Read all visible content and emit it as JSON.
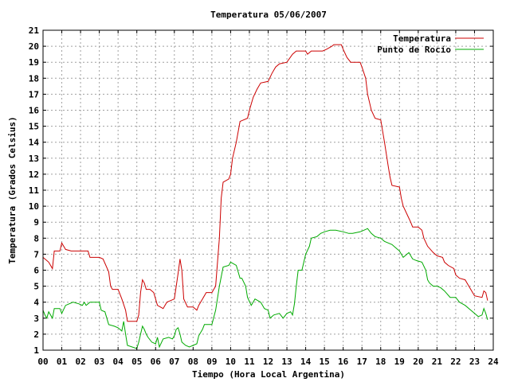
{
  "chart_data": {
    "type": "line",
    "title": "Temperatura 05/06/2007",
    "xlabel": "Tiempo (Hora Local Argentina)",
    "ylabel": "Temperatura (Grados Celsius)",
    "xlim": [
      0,
      24
    ],
    "ylim": [
      1,
      21
    ],
    "x_ticks": [
      0,
      1,
      2,
      3,
      4,
      5,
      6,
      7,
      8,
      9,
      10,
      11,
      12,
      13,
      14,
      15,
      16,
      17,
      18,
      19,
      20,
      21,
      22,
      23,
      24
    ],
    "x_tick_labels": [
      "00",
      "01",
      "02",
      "03",
      "04",
      "05",
      "06",
      "07",
      "08",
      "09",
      "10",
      "11",
      "12",
      "13",
      "14",
      "15",
      "16",
      "17",
      "18",
      "19",
      "20",
      "21",
      "22",
      "23",
      "24"
    ],
    "y_ticks": [
      1,
      2,
      3,
      4,
      5,
      6,
      7,
      8,
      9,
      10,
      11,
      12,
      13,
      14,
      15,
      16,
      17,
      18,
      19,
      20,
      21
    ],
    "grid": true,
    "legend_position": "top-right",
    "series": [
      {
        "name": "Temperatura",
        "color": "#cc0000",
        "points": [
          [
            0,
            6.8
          ],
          [
            0.3,
            6.5
          ],
          [
            0.5,
            6.1
          ],
          [
            0.6,
            7.2
          ],
          [
            0.9,
            7.2
          ],
          [
            1.0,
            7.7
          ],
          [
            1.2,
            7.3
          ],
          [
            1.5,
            7.2
          ],
          [
            2.0,
            7.2
          ],
          [
            2.4,
            7.2
          ],
          [
            2.5,
            6.8
          ],
          [
            3.0,
            6.8
          ],
          [
            3.2,
            6.7
          ],
          [
            3.5,
            5.9
          ],
          [
            3.6,
            5.0
          ],
          [
            3.7,
            4.8
          ],
          [
            4.0,
            4.8
          ],
          [
            4.2,
            4.2
          ],
          [
            4.4,
            3.5
          ],
          [
            4.5,
            2.8
          ],
          [
            5.0,
            2.8
          ],
          [
            5.1,
            3.2
          ],
          [
            5.2,
            4.6
          ],
          [
            5.3,
            5.4
          ],
          [
            5.4,
            5.2
          ],
          [
            5.5,
            4.8
          ],
          [
            5.7,
            4.8
          ],
          [
            5.9,
            4.6
          ],
          [
            6.1,
            3.8
          ],
          [
            6.4,
            3.6
          ],
          [
            6.6,
            4.0
          ],
          [
            6.8,
            4.1
          ],
          [
            7.0,
            4.2
          ],
          [
            7.2,
            5.8
          ],
          [
            7.3,
            6.7
          ],
          [
            7.4,
            6.0
          ],
          [
            7.5,
            4.2
          ],
          [
            7.7,
            3.7
          ],
          [
            8.0,
            3.7
          ],
          [
            8.2,
            3.5
          ],
          [
            8.3,
            3.8
          ],
          [
            8.5,
            4.2
          ],
          [
            8.7,
            4.6
          ],
          [
            9.0,
            4.6
          ],
          [
            9.2,
            5.0
          ],
          [
            9.4,
            8.0
          ],
          [
            9.5,
            10.5
          ],
          [
            9.6,
            11.5
          ],
          [
            9.9,
            11.7
          ],
          [
            10.0,
            12.0
          ],
          [
            10.1,
            13.0
          ],
          [
            10.3,
            14.0
          ],
          [
            10.5,
            15.3
          ],
          [
            10.9,
            15.5
          ],
          [
            11.0,
            16.0
          ],
          [
            11.2,
            16.8
          ],
          [
            11.4,
            17.3
          ],
          [
            11.6,
            17.7
          ],
          [
            12.0,
            17.8
          ],
          [
            12.2,
            18.3
          ],
          [
            12.4,
            18.7
          ],
          [
            12.6,
            18.9
          ],
          [
            13.0,
            19.0
          ],
          [
            13.3,
            19.5
          ],
          [
            13.5,
            19.7
          ],
          [
            14.0,
            19.7
          ],
          [
            14.1,
            19.5
          ],
          [
            14.3,
            19.7
          ],
          [
            14.9,
            19.7
          ],
          [
            15.1,
            19.8
          ],
          [
            15.4,
            20.0
          ],
          [
            15.5,
            20.1
          ],
          [
            15.9,
            20.1
          ],
          [
            16.0,
            19.8
          ],
          [
            16.2,
            19.3
          ],
          [
            16.4,
            19.0
          ],
          [
            16.9,
            19.0
          ],
          [
            17.0,
            18.7
          ],
          [
            17.2,
            18.0
          ],
          [
            17.3,
            17.0
          ],
          [
            17.5,
            16.0
          ],
          [
            17.7,
            15.5
          ],
          [
            18.0,
            15.4
          ],
          [
            18.2,
            14.0
          ],
          [
            18.4,
            12.5
          ],
          [
            18.5,
            11.8
          ],
          [
            18.6,
            11.3
          ],
          [
            19.0,
            11.2
          ],
          [
            19.1,
            10.5
          ],
          [
            19.2,
            10.0
          ],
          [
            19.4,
            9.5
          ],
          [
            19.6,
            9.0
          ],
          [
            19.7,
            8.7
          ],
          [
            20.0,
            8.7
          ],
          [
            20.2,
            8.5
          ],
          [
            20.3,
            8.0
          ],
          [
            20.5,
            7.5
          ],
          [
            20.8,
            7.1
          ],
          [
            21.0,
            6.9
          ],
          [
            21.3,
            6.8
          ],
          [
            21.4,
            6.5
          ],
          [
            21.6,
            6.3
          ],
          [
            21.9,
            6.1
          ],
          [
            22.0,
            5.7
          ],
          [
            22.2,
            5.5
          ],
          [
            22.5,
            5.4
          ],
          [
            22.7,
            5.0
          ],
          [
            22.9,
            4.6
          ],
          [
            23.0,
            4.4
          ],
          [
            23.4,
            4.3
          ],
          [
            23.5,
            4.7
          ],
          [
            23.6,
            4.6
          ],
          [
            23.7,
            4.1
          ]
        ]
      },
      {
        "name": "Punto de Rocío",
        "color": "#00aa00",
        "points": [
          [
            0,
            3.5
          ],
          [
            0.1,
            3.2
          ],
          [
            0.2,
            3.0
          ],
          [
            0.3,
            3.4
          ],
          [
            0.5,
            3.0
          ],
          [
            0.6,
            3.6
          ],
          [
            0.9,
            3.6
          ],
          [
            1.0,
            3.3
          ],
          [
            1.2,
            3.8
          ],
          [
            1.6,
            4.0
          ],
          [
            1.9,
            3.9
          ],
          [
            2.1,
            3.8
          ],
          [
            2.2,
            4.0
          ],
          [
            2.3,
            3.8
          ],
          [
            2.5,
            4.0
          ],
          [
            3.0,
            4.0
          ],
          [
            3.1,
            3.5
          ],
          [
            3.3,
            3.4
          ],
          [
            3.5,
            2.6
          ],
          [
            3.8,
            2.5
          ],
          [
            4.0,
            2.4
          ],
          [
            4.2,
            2.2
          ],
          [
            4.3,
            2.8
          ],
          [
            4.4,
            2.0
          ],
          [
            4.5,
            1.3
          ],
          [
            5.0,
            1.1
          ],
          [
            5.1,
            1.5
          ],
          [
            5.2,
            2.0
          ],
          [
            5.3,
            2.5
          ],
          [
            5.4,
            2.3
          ],
          [
            5.5,
            2.0
          ],
          [
            5.6,
            1.8
          ],
          [
            5.8,
            1.5
          ],
          [
            6.0,
            1.4
          ],
          [
            6.1,
            1.8
          ],
          [
            6.2,
            1.2
          ],
          [
            6.4,
            1.7
          ],
          [
            6.7,
            1.8
          ],
          [
            6.9,
            1.7
          ],
          [
            7.0,
            1.9
          ],
          [
            7.1,
            2.3
          ],
          [
            7.2,
            2.4
          ],
          [
            7.3,
            2.0
          ],
          [
            7.4,
            1.5
          ],
          [
            7.6,
            1.3
          ],
          [
            7.8,
            1.2
          ],
          [
            8.0,
            1.3
          ],
          [
            8.2,
            1.4
          ],
          [
            8.3,
            1.9
          ],
          [
            8.5,
            2.3
          ],
          [
            8.6,
            2.6
          ],
          [
            9.0,
            2.6
          ],
          [
            9.2,
            3.5
          ],
          [
            9.4,
            5.0
          ],
          [
            9.6,
            6.2
          ],
          [
            9.9,
            6.3
          ],
          [
            10.0,
            6.5
          ],
          [
            10.3,
            6.3
          ],
          [
            10.5,
            5.5
          ],
          [
            10.6,
            5.5
          ],
          [
            10.8,
            5.0
          ],
          [
            10.9,
            4.3
          ],
          [
            11.1,
            3.8
          ],
          [
            11.3,
            4.2
          ],
          [
            11.6,
            4.0
          ],
          [
            11.8,
            3.6
          ],
          [
            12.0,
            3.5
          ],
          [
            12.1,
            3.0
          ],
          [
            12.3,
            3.2
          ],
          [
            12.6,
            3.3
          ],
          [
            12.8,
            3.0
          ],
          [
            13.0,
            3.3
          ],
          [
            13.2,
            3.4
          ],
          [
            13.3,
            3.2
          ],
          [
            13.4,
            3.9
          ],
          [
            13.5,
            5.0
          ],
          [
            13.6,
            6.0
          ],
          [
            13.8,
            6.0
          ],
          [
            14.0,
            7.0
          ],
          [
            14.2,
            7.5
          ],
          [
            14.3,
            8.0
          ],
          [
            14.6,
            8.1
          ],
          [
            14.8,
            8.3
          ],
          [
            15.0,
            8.4
          ],
          [
            15.3,
            8.5
          ],
          [
            15.6,
            8.5
          ],
          [
            16.0,
            8.4
          ],
          [
            16.3,
            8.3
          ],
          [
            16.5,
            8.3
          ],
          [
            16.9,
            8.4
          ],
          [
            17.1,
            8.5
          ],
          [
            17.3,
            8.6
          ],
          [
            17.5,
            8.3
          ],
          [
            17.7,
            8.1
          ],
          [
            18.0,
            8.0
          ],
          [
            18.2,
            7.8
          ],
          [
            18.4,
            7.7
          ],
          [
            18.6,
            7.6
          ],
          [
            18.8,
            7.4
          ],
          [
            19.0,
            7.2
          ],
          [
            19.2,
            6.8
          ],
          [
            19.4,
            7.0
          ],
          [
            19.5,
            7.1
          ],
          [
            19.7,
            6.7
          ],
          [
            19.9,
            6.6
          ],
          [
            20.2,
            6.5
          ],
          [
            20.4,
            6.0
          ],
          [
            20.5,
            5.4
          ],
          [
            20.6,
            5.2
          ],
          [
            20.8,
            5.0
          ],
          [
            21.0,
            5.0
          ],
          [
            21.2,
            4.9
          ],
          [
            21.4,
            4.7
          ],
          [
            21.7,
            4.3
          ],
          [
            22.0,
            4.3
          ],
          [
            22.2,
            4.0
          ],
          [
            22.5,
            3.8
          ],
          [
            22.8,
            3.5
          ],
          [
            23.0,
            3.3
          ],
          [
            23.2,
            3.1
          ],
          [
            23.4,
            3.2
          ],
          [
            23.5,
            3.6
          ],
          [
            23.6,
            3.3
          ],
          [
            23.7,
            2.9
          ]
        ]
      }
    ]
  }
}
